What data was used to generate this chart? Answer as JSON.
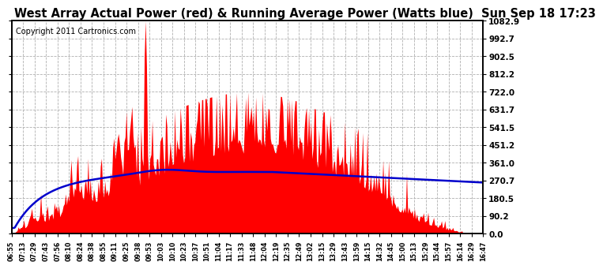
{
  "title": "West Array Actual Power (red) & Running Average Power (Watts blue)  Sun Sep 18 17:23",
  "copyright": "Copyright 2011 Cartronics.com",
  "yticks": [
    0.0,
    90.2,
    180.5,
    270.7,
    361.0,
    451.2,
    541.5,
    631.7,
    722.0,
    812.2,
    902.5,
    992.7,
    1082.9
  ],
  "ylim": [
    0.0,
    1082.9
  ],
  "bg_color": "#ffffff",
  "plot_bg_color": "#ffffff",
  "grid_color": "#b0b0b0",
  "fill_color": "#ff0000",
  "line_color": "#0000cc",
  "title_fontsize": 10.5,
  "copyright_fontsize": 7,
  "xtick_labels": [
    "06:55",
    "07:13",
    "07:29",
    "07:43",
    "07:56",
    "08:10",
    "08:24",
    "08:38",
    "08:55",
    "09:11",
    "09:25",
    "09:38",
    "09:53",
    "10:03",
    "10:10",
    "10:23",
    "10:37",
    "10:51",
    "11:04",
    "11:17",
    "11:33",
    "11:48",
    "12:04",
    "12:19",
    "12:35",
    "12:49",
    "13:02",
    "13:15",
    "13:29",
    "13:43",
    "13:59",
    "14:15",
    "14:32",
    "14:45",
    "15:00",
    "15:13",
    "15:29",
    "15:44",
    "15:57",
    "16:14",
    "16:29",
    "16:47"
  ]
}
